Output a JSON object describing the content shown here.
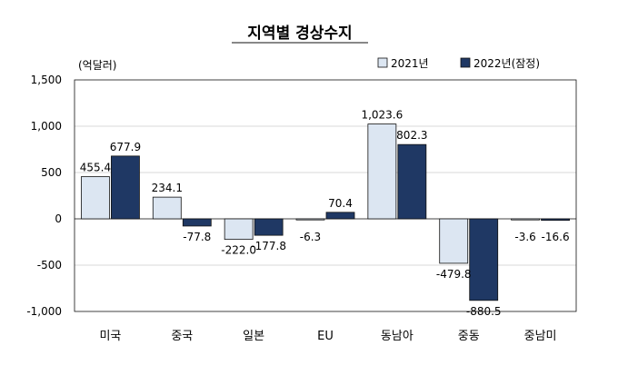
{
  "chart_data": {
    "type": "bar",
    "title": "지역별 경상수지",
    "unit_label": "(억달러)",
    "categories": [
      "미국",
      "중국",
      "일본",
      "EU",
      "동남아",
      "중동",
      "중남미"
    ],
    "series": [
      {
        "name": "2021년",
        "values": [
          455.4,
          234.1,
          -222.0,
          -6.3,
          1023.6,
          -479.8,
          -3.6
        ],
        "labels": [
          "455.4",
          "234.1",
          "-222.0",
          "-6.3",
          "1,023.6",
          "-479.8",
          "-3.6"
        ],
        "color": "#dce6f2"
      },
      {
        "name": "2022년(잠정)",
        "values": [
          677.9,
          -77.8,
          -177.8,
          70.4,
          802.3,
          -880.5,
          -16.6
        ],
        "labels": [
          "677.9",
          "-77.8",
          "-177.8",
          "70.4",
          "802.3",
          "-880.5",
          "-16.6"
        ],
        "color": "#1f3864"
      }
    ],
    "yticks": [
      1500,
      1000,
      500,
      0,
      -500,
      -1000
    ],
    "ytick_labels": [
      "1,500",
      "1,000",
      "500",
      "0",
      "-500",
      "-1,000"
    ],
    "ylim": [
      -1000,
      1500
    ],
    "grid": true,
    "legend_position": "top-right"
  }
}
